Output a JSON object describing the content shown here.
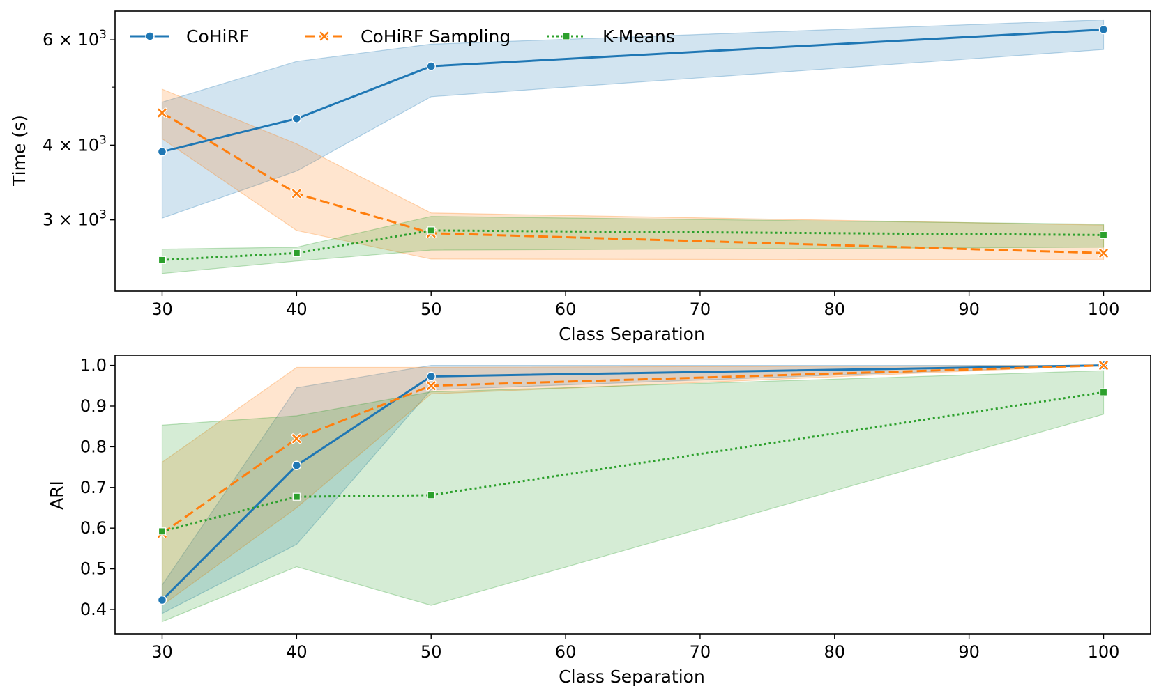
{
  "chart_data": [
    {
      "type": "line",
      "panel": "top",
      "yscale": "log",
      "xlabel": "Class Separation",
      "ylabel": "Time (s)",
      "xlim": [
        26.5,
        103.5
      ],
      "ylim": [
        2280,
        6700
      ],
      "x_ticks": [
        30,
        40,
        50,
        60,
        70,
        80,
        90,
        100
      ],
      "y_ticks": [
        {
          "value": 3000,
          "base": "3",
          "exp": "3"
        },
        {
          "value": 4000,
          "base": "4",
          "exp": "3"
        },
        {
          "value": 6000,
          "base": "6",
          "exp": "3"
        }
      ],
      "y_minor_ticks": [
        5000
      ],
      "x": [
        30,
        40,
        50,
        100
      ],
      "legend": {
        "placement": "top-left",
        "entries": [
          "CoHiRF",
          "CoHiRF Sampling",
          "K-Means"
        ]
      },
      "series": [
        {
          "name": "CoHiRF",
          "color": "#1f77b4",
          "marker": "circle",
          "dash": "solid",
          "values": [
            3900,
            4430,
            5420,
            6240
          ],
          "lower": [
            3020,
            3620,
            4820,
            5780
          ],
          "upper": [
            4720,
            5520,
            5900,
            6480
          ]
        },
        {
          "name": "CoHiRF Sampling",
          "color": "#ff7f0e",
          "marker": "x",
          "dash": "dashed",
          "values": [
            4530,
            3320,
            2850,
            2640
          ],
          "lower": [
            4100,
            2880,
            2580,
            2570
          ],
          "upper": [
            4960,
            4020,
            3080,
            2940
          ]
        },
        {
          "name": "K-Means",
          "color": "#2ca02c",
          "marker": "square",
          "dash": "dotted",
          "values": [
            2570,
            2640,
            2880,
            2830
          ],
          "lower": [
            2440,
            2560,
            2670,
            2700
          ],
          "upper": [
            2680,
            2700,
            3040,
            2950
          ]
        }
      ]
    },
    {
      "type": "line",
      "panel": "bottom",
      "yscale": "linear",
      "xlabel": "Class Separation",
      "ylabel": "ARI",
      "xlim": [
        26.5,
        103.5
      ],
      "ylim": [
        0.34,
        1.025
      ],
      "x_ticks": [
        30,
        40,
        50,
        60,
        70,
        80,
        90,
        100
      ],
      "y_ticks": [
        0.4,
        0.5,
        0.6,
        0.7,
        0.8,
        0.9,
        1.0
      ],
      "y_tick_labels": [
        "0.4",
        "0.5",
        "0.6",
        "0.7",
        "0.8",
        "0.9",
        "1.0"
      ],
      "x": [
        30,
        40,
        50,
        100
      ],
      "series": [
        {
          "name": "CoHiRF",
          "color": "#1f77b4",
          "marker": "circle",
          "dash": "solid",
          "values": [
            0.423,
            0.754,
            0.973,
            1.0
          ],
          "lower": [
            0.39,
            0.56,
            0.94,
            1.0
          ],
          "upper": [
            0.46,
            0.945,
            1.0,
            1.0
          ]
        },
        {
          "name": "CoHiRF Sampling",
          "color": "#ff7f0e",
          "marker": "x",
          "dash": "dashed",
          "values": [
            0.587,
            0.82,
            0.95,
            1.0
          ],
          "lower": [
            0.41,
            0.65,
            0.93,
            1.0
          ],
          "upper": [
            0.762,
            0.995,
            0.995,
            1.0
          ]
        },
        {
          "name": "K-Means",
          "color": "#2ca02c",
          "marker": "square",
          "dash": "dotted",
          "values": [
            0.592,
            0.677,
            0.681,
            0.934
          ],
          "lower": [
            0.37,
            0.505,
            0.41,
            0.88
          ],
          "upper": [
            0.853,
            0.876,
            0.935,
            0.987
          ]
        }
      ]
    }
  ]
}
